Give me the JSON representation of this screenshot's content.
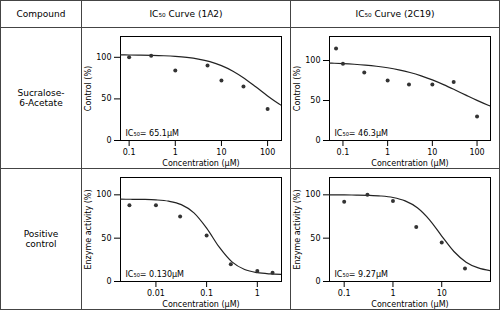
{
  "column_headers": [
    "Compound",
    "IC₅₀ Curve (1A2)",
    "IC₅₀ Curve (2C19)"
  ],
  "row_labels": [
    "Sucralose-\n6-Acetate",
    "Positive\ncontrol"
  ],
  "chart_data": [
    {
      "type": "scatter",
      "xlabel": "Concentration (μM)",
      "ylabel": "Control (%)",
      "log": "x",
      "xlim": [
        0.065,
        200
      ],
      "ylim": [
        0,
        125
      ],
      "xticks": [
        0.1,
        1,
        10,
        100
      ],
      "yticks": [
        0,
        50,
        100
      ],
      "annotations": [
        "IC₅₀= 65.1μM"
      ],
      "series": [
        {
          "type": "line",
          "color": "#222222",
          "x": [
            0.065,
            0.1,
            0.1778,
            0.3162,
            0.5623,
            1,
            1.778,
            3.162,
            5.623,
            10,
            17.78,
            31.62,
            56.23,
            100,
            177.8,
            200
          ],
          "values": [
            102.83,
            102.76,
            102.59,
            102.32,
            101.86,
            101.11,
            99.87,
            97.88,
            94.75,
            90.03,
            83.31,
            74.53,
            64.23,
            53.58,
            43.92,
            42.16
          ]
        },
        {
          "type": "scatter",
          "color": "#333333",
          "x": [
            0.1,
            0.3,
            1.0,
            5.0,
            10.0,
            30.0,
            100.0
          ],
          "values": [
            100,
            102,
            84,
            90,
            72,
            65,
            38
          ]
        }
      ]
    },
    {
      "type": "scatter",
      "xlabel": "Concentration (μM)",
      "ylabel": "Control (%)",
      "log": "x",
      "xlim": [
        0.05,
        200
      ],
      "ylim": [
        0,
        130
      ],
      "xticks": [
        0.1,
        1,
        10,
        100
      ],
      "yticks": [
        0,
        50,
        100
      ],
      "annotations": [
        "IC₅₀= 46.3μM"
      ],
      "series": [
        {
          "type": "line",
          "color": "#222222",
          "x": [
            0.05,
            0.05623,
            0.1,
            0.1778,
            0.3162,
            0.5623,
            1,
            1.778,
            3.162,
            5.623,
            10,
            17.78,
            31.62,
            56.23,
            100,
            177.8,
            200
          ],
          "values": [
            96.73,
            96.64,
            96.09,
            95.32,
            94.27,
            92.84,
            90.9,
            88.33,
            85.01,
            80.83,
            75.77,
            69.9,
            63.44,
            56.73,
            50.15,
            44.06,
            42.9
          ]
        },
        {
          "type": "scatter",
          "color": "#333333",
          "x": [
            0.07,
            0.1,
            0.3,
            1.0,
            3.0,
            10.0,
            30.0,
            100.0
          ],
          "values": [
            115,
            96,
            85,
            75,
            70,
            70,
            73,
            30
          ]
        }
      ]
    },
    {
      "type": "scatter",
      "xlabel": "Concentration (μM)",
      "ylabel": "Enzyme activity (%)",
      "log": "x",
      "xlim": [
        0.002,
        3
      ],
      "ylim": [
        0,
        120
      ],
      "xticks": [
        0.01,
        0.1,
        1
      ],
      "yticks": [
        0,
        50,
        100
      ],
      "annotations": [
        "IC₅₀= 0.130μM"
      ],
      "series": [
        {
          "type": "line",
          "color": "#222222",
          "x": [
            0.002,
            0.003162,
            0.005623,
            0.01,
            0.01778,
            0.03162,
            0.05623,
            0.1,
            0.1778,
            0.3162,
            0.5623,
            1,
            1.778,
            3
          ],
          "values": [
            94.95,
            94.89,
            94.7,
            94.15,
            92.64,
            88.67,
            79.24,
            61.59,
            39.55,
            22.61,
            13.82,
            10.16,
            8.78,
            8.31
          ]
        },
        {
          "type": "scatter",
          "color": "#333333",
          "x": [
            0.003,
            0.01,
            0.03,
            0.1,
            0.3,
            1.0,
            2.0
          ],
          "values": [
            88,
            88,
            75,
            53,
            20,
            12,
            10
          ]
        }
      ]
    },
    {
      "type": "scatter",
      "xlabel": "Concentration (μM)",
      "ylabel": "Enzyme activity (%)",
      "log": "x",
      "xlim": [
        0.05,
        100
      ],
      "ylim": [
        0,
        120
      ],
      "xticks": [
        0.1,
        1,
        10
      ],
      "yticks": [
        0,
        50,
        100
      ],
      "annotations": [
        "IC₅₀= 9.27μM"
      ],
      "series": [
        {
          "type": "line",
          "color": "#222222",
          "x": [
            0.05,
            0.05623,
            0.1,
            0.1778,
            0.3162,
            0.5623,
            1,
            1.778,
            3.162,
            5.623,
            10,
            17.78,
            31.62,
            56.23,
            100
          ],
          "values": [
            99.96,
            99.96,
            99.9,
            99.76,
            99.44,
            98.68,
            96.92,
            93.02,
            85.05,
            71.12,
            52.44,
            34.61,
            22.33,
            15.65,
            12.47
          ]
        },
        {
          "type": "scatter",
          "color": "#333333",
          "x": [
            0.1,
            0.3,
            1.0,
            3.0,
            10.0,
            30.0
          ],
          "values": [
            92,
            100,
            93,
            63,
            45,
            15
          ]
        }
      ]
    }
  ]
}
